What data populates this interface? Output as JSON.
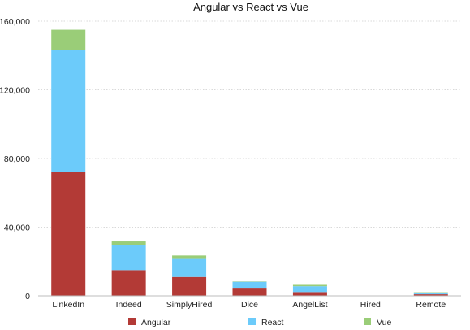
{
  "chart_data": {
    "type": "bar",
    "stacked": true,
    "title": "Angular vs React vs Vue",
    "xlabel": "",
    "ylabel": "",
    "ylim": [
      0,
      160000
    ],
    "y_ticks": [
      0,
      40000,
      80000,
      120000,
      160000
    ],
    "y_tick_labels": [
      "0",
      "40,000",
      "80,000",
      "120,000",
      "160,000"
    ],
    "grid": true,
    "legend_position": "bottom",
    "categories": [
      "LinkedIn",
      "Indeed",
      "SimplyHired",
      "Dice",
      "AngelList",
      "Hired",
      "Remote"
    ],
    "series": [
      {
        "name": "Angular",
        "color": "#B33A36",
        "values": [
          72000,
          15000,
          11000,
          4700,
          2200,
          0,
          900
        ]
      },
      {
        "name": "React",
        "color": "#6CCBFA",
        "values": [
          71000,
          14500,
          10500,
          3500,
          3400,
          0,
          1000
        ]
      },
      {
        "name": "Vue",
        "color": "#9ACD78",
        "values": [
          12000,
          2200,
          2000,
          200,
          800,
          0,
          200
        ]
      }
    ]
  }
}
